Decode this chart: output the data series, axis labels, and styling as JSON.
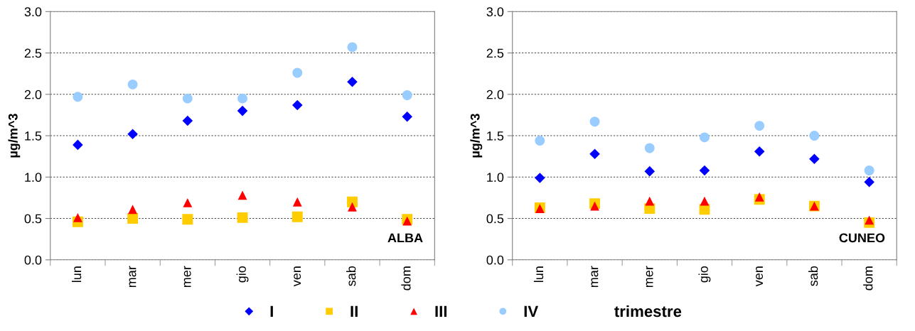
{
  "chart_data": [
    {
      "type": "scatter",
      "ylabel": "µg/m^3",
      "categories": [
        "lun",
        "mar",
        "mer",
        "gio",
        "ven",
        "sab",
        "dom"
      ],
      "ylim": [
        0,
        3
      ],
      "yticks": [
        {
          "value": 0,
          "label": "0.0"
        },
        {
          "value": 0.5,
          "label": "0.5"
        },
        {
          "value": 1,
          "label": "1.0"
        },
        {
          "value": 1.5,
          "label": "1.5"
        },
        {
          "value": 2,
          "label": "2.0"
        },
        {
          "value": 2.5,
          "label": "2.5"
        },
        {
          "value": 3,
          "label": "3.0"
        }
      ],
      "grid": "y",
      "legend": "bottom",
      "legend_title": "trimestre",
      "annotations": [
        "ALBA"
      ],
      "series": [
        {
          "name": "I",
          "color": "#0000ff",
          "marker": "diamond",
          "values": [
            1.39,
            1.52,
            1.68,
            1.8,
            1.87,
            2.15,
            1.73
          ]
        },
        {
          "name": "II",
          "color": "#ffcc00",
          "marker": "square",
          "values": [
            0.46,
            0.5,
            0.49,
            0.51,
            0.52,
            0.7,
            0.49
          ]
        },
        {
          "name": "III",
          "color": "#ff0000",
          "marker": "triangle",
          "values": [
            0.51,
            0.61,
            0.69,
            0.78,
            0.7,
            0.64,
            0.47
          ]
        },
        {
          "name": "IV",
          "color": "#99ccff",
          "marker": "circle",
          "values": [
            1.97,
            2.12,
            1.95,
            1.95,
            2.26,
            2.57,
            1.99
          ]
        }
      ]
    },
    {
      "type": "scatter",
      "ylabel": "µg/m^3",
      "categories": [
        "lun",
        "mar",
        "mer",
        "gio",
        "ven",
        "sab",
        "dom"
      ],
      "ylim": [
        0,
        3
      ],
      "yticks": [
        {
          "value": 0,
          "label": "0.0"
        },
        {
          "value": 0.5,
          "label": "0.5"
        },
        {
          "value": 1,
          "label": "1.0"
        },
        {
          "value": 1.5,
          "label": "1.5"
        },
        {
          "value": 2,
          "label": "2.0"
        },
        {
          "value": 2.5,
          "label": "2.5"
        },
        {
          "value": 3,
          "label": "3.0"
        }
      ],
      "grid": "y",
      "annotations": [
        "CUNEO"
      ],
      "series": [
        {
          "color": "#0000ff",
          "marker": "diamond",
          "values": [
            0.99,
            1.28,
            1.07,
            1.08,
            1.31,
            1.22,
            0.94
          ]
        },
        {
          "color": "#ffcc00",
          "marker": "square",
          "values": [
            0.63,
            0.68,
            0.62,
            0.61,
            0.73,
            0.65,
            0.45
          ]
        },
        {
          "color": "#ff0000",
          "marker": "triangle",
          "values": [
            0.62,
            0.65,
            0.71,
            0.71,
            0.76,
            0.65,
            0.48
          ]
        },
        {
          "color": "#99ccff",
          "marker": "circle",
          "values": [
            1.44,
            1.67,
            1.35,
            1.48,
            1.62,
            1.5,
            1.08
          ]
        }
      ]
    }
  ]
}
